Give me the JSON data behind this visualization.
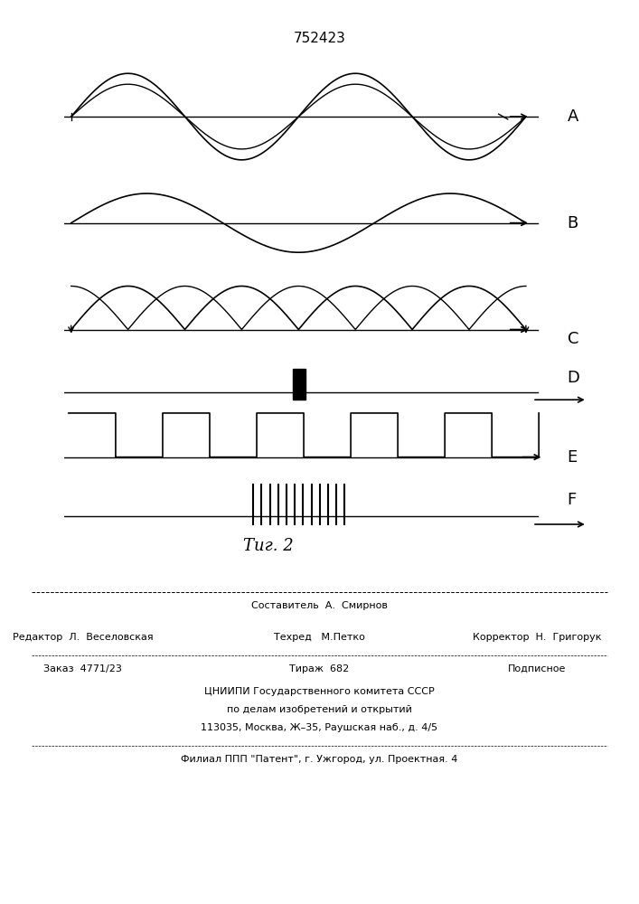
{
  "title": "752423",
  "fig_label": "Τиг. 2",
  "panel_labels": [
    "A",
    "B",
    "C",
    "D",
    "E",
    "F"
  ],
  "bg_color": "#ffffff",
  "line_color": "#000000",
  "footer_lines": [
    [
      "Составитель  А.  Смирнов"
    ],
    [
      "Редактор  Л.  Веселовская",
      "Техред   М.Петко",
      "Корректор  Н.  Григорук"
    ],
    [
      "Заказ  4771/23",
      "Тираж  682",
      "Подписное"
    ],
    [
      "ЦНИИПИ Государственного комитета СССР"
    ],
    [
      "по делам изобретений и открытий"
    ],
    [
      "113035, Москва, Ж–35, Раушская наб., д. 4/5"
    ],
    [
      "Филиал ППП \"Патент\", г. Ужгород, ул. Проектная. 4"
    ]
  ]
}
